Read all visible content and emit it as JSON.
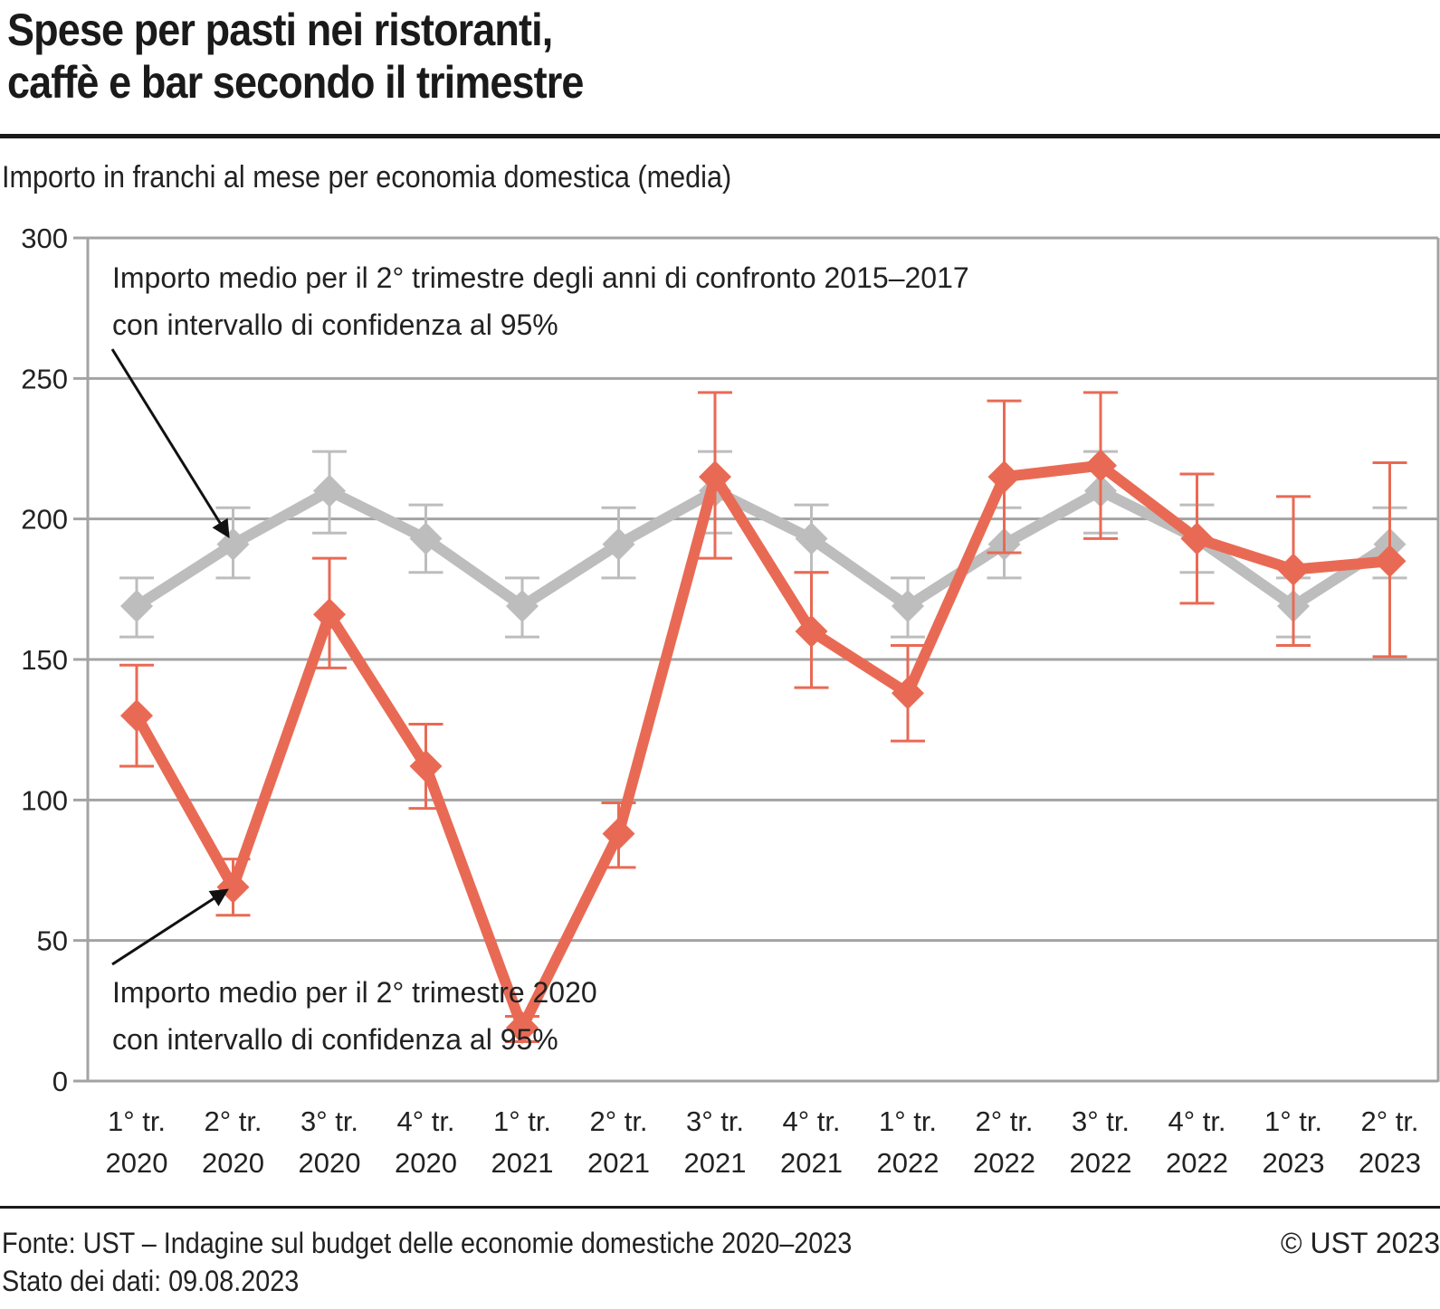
{
  "header": {
    "title_line1": "Spese per pasti nei ristoranti,",
    "title_line2": "caffè e bar secondo il trimestre",
    "subtitle": "Importo in franchi al mese per economia domestica (media)"
  },
  "footer": {
    "source": "Fonte: UST – Indagine sul budget delle economie domestiche 2020–2023",
    "status": "Stato dei dati: 09.08.2023",
    "copyright": "© UST 2023"
  },
  "colors": {
    "current_series": "#E96A54",
    "reference_series": "#BDBDBD",
    "grid": "#A3A3A3",
    "arrow": "#111111"
  },
  "chart_data": {
    "type": "line",
    "title": "Spese per pasti nei ristoranti, caffè e bar secondo il trimestre",
    "ylabel": "Importo in franchi al mese per economia domestica (media)",
    "xlabel": "",
    "ylim": [
      0,
      300
    ],
    "yticks": [
      0,
      50,
      100,
      150,
      200,
      250,
      300
    ],
    "grid": true,
    "categories": [
      [
        "1° tr.",
        "2020"
      ],
      [
        "2° tr.",
        "2020"
      ],
      [
        "3° tr.",
        "2020"
      ],
      [
        "4° tr.",
        "2020"
      ],
      [
        "1° tr.",
        "2021"
      ],
      [
        "2° tr.",
        "2021"
      ],
      [
        "3° tr.",
        "2021"
      ],
      [
        "4° tr.",
        "2021"
      ],
      [
        "1° tr.",
        "2022"
      ],
      [
        "2° tr.",
        "2022"
      ],
      [
        "3° tr.",
        "2022"
      ],
      [
        "4° tr.",
        "2022"
      ],
      [
        "1° tr.",
        "2023"
      ],
      [
        "2° tr.",
        "2023"
      ]
    ],
    "series": [
      {
        "name": "Importo medio per il trimestre degli anni di confronto 2015–2017 con intervallo di confidenza al 95%",
        "color": "#BDBDBD",
        "values": [
          169,
          191,
          210,
          193,
          169,
          191,
          210,
          193,
          169,
          191,
          210,
          193,
          169,
          191
        ],
        "ci_low": [
          158,
          179,
          195,
          181,
          158,
          179,
          195,
          181,
          158,
          179,
          195,
          181,
          158,
          179
        ],
        "ci_high": [
          179,
          204,
          224,
          205,
          179,
          204,
          224,
          205,
          179,
          204,
          224,
          205,
          179,
          204
        ]
      },
      {
        "name": "Importo medio per il trimestre 2020–2023 con intervallo di confidenza al 95%",
        "color": "#E96A54",
        "values": [
          130,
          69,
          166,
          112,
          19,
          88,
          215,
          160,
          138,
          215,
          219,
          193,
          182,
          185
        ],
        "ci_low": [
          112,
          59,
          147,
          97,
          14,
          76,
          186,
          140,
          121,
          188,
          193,
          170,
          155,
          151
        ],
        "ci_high": [
          148,
          79,
          186,
          127,
          23,
          99,
          245,
          181,
          155,
          242,
          245,
          216,
          208,
          220
        ]
      }
    ],
    "annotations": [
      {
        "line1": "Importo medio per il 2° trimestre degli anni di confronto 2015–2017",
        "line2": "con intervallo di confidenza al 95%",
        "points_to": "reference series, 2° tr. 2020"
      },
      {
        "line1": "Importo medio per il 2° trimestre 2020",
        "line2": "con intervallo di confidenza al 95%",
        "points_to": "current series, 2° tr. 2020"
      }
    ]
  }
}
